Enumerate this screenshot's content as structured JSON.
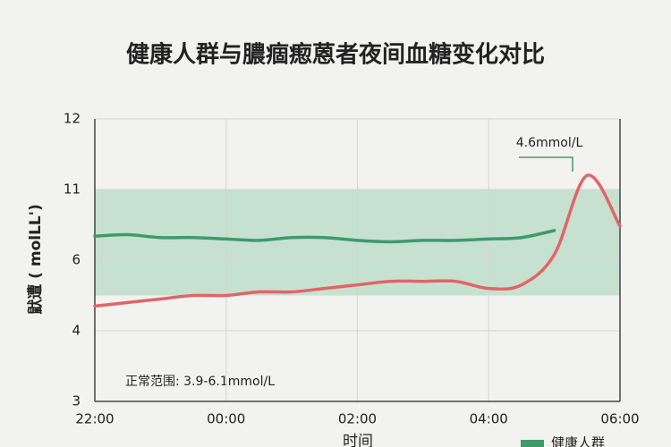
{
  "chart_data": {
    "type": "line",
    "title": "健康人群与膿痼瘛蒽者夜间血糖变化对比",
    "ylabel": "鼣遭 ( molLL')",
    "xlabel": "时间",
    "annotation": "4.6mmol/L",
    "range_note": "正常范围: 3.9-6.1mmol/L",
    "band": [
      5.0,
      11
    ],
    "reference_line": 6,
    "ylim": [
      3,
      12
    ],
    "yticks": [
      12,
      11,
      6,
      4,
      3
    ],
    "xlim": [
      22,
      30
    ],
    "xticks": [
      {
        "value": 22,
        "label": "22:00"
      },
      {
        "value": 24,
        "label": "00:00"
      },
      {
        "value": 26,
        "label": "02:00"
      },
      {
        "value": 28,
        "label": "04:00"
      },
      {
        "value": 30,
        "label": "06:00"
      }
    ],
    "grid": true,
    "series": [
      {
        "name": "健康人群",
        "color": "#3f9a6a",
        "x": [
          22,
          22.5,
          23,
          23.5,
          24,
          24.5,
          25,
          25.5,
          26,
          26.5,
          27,
          27.5,
          28,
          28.5,
          29
        ],
        "values": [
          7.7,
          7.8,
          7.6,
          7.6,
          7.5,
          7.4,
          7.6,
          7.6,
          7.4,
          7.3,
          7.4,
          7.4,
          7.5,
          7.6,
          8.1
        ]
      },
      {
        "color": "#e06666",
        "x": [
          22,
          22.5,
          23,
          23.5,
          24,
          24.5,
          25,
          25.5,
          26,
          26.5,
          27,
          27.5,
          28,
          28.5,
          29,
          29.5,
          30
        ],
        "values": [
          4.7,
          4.8,
          4.9,
          5.0,
          5.0,
          5.1,
          5.1,
          5.2,
          5.3,
          5.4,
          5.4,
          5.4,
          5.2,
          5.3,
          6.4,
          11.2,
          8.4
        ]
      }
    ]
  }
}
